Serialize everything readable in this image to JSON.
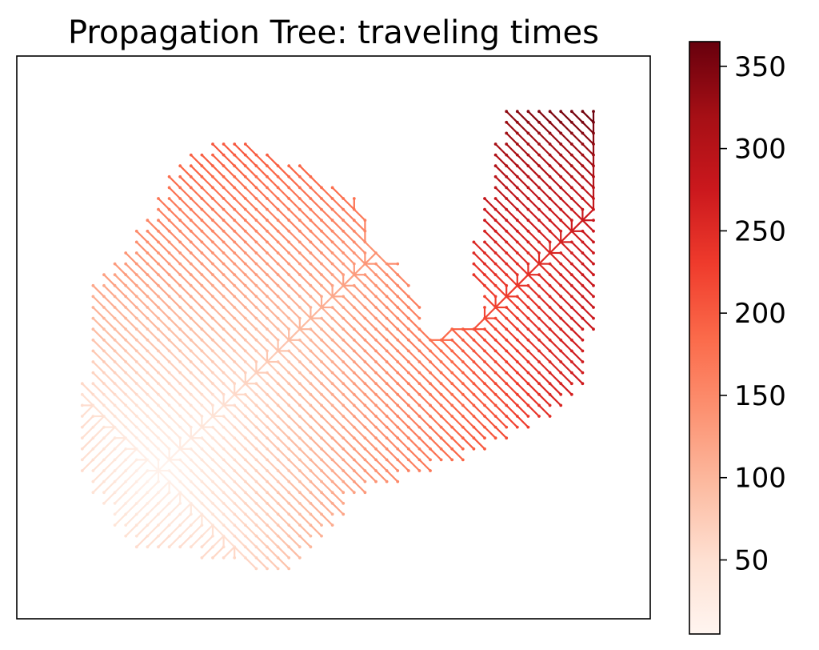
{
  "chart_data": {
    "type": "tree",
    "title": "Propagation Tree: traveling times",
    "colormap": "Reds",
    "colorbar": {
      "vmin": 5,
      "vmax": 365,
      "ticks": [
        50,
        100,
        150,
        200,
        250,
        300,
        350
      ],
      "tick_labels": [
        "50",
        "100",
        "150",
        "200",
        "250",
        "300",
        "350"
      ],
      "color_stops": [
        "#fff5f0",
        "#fee0d2",
        "#fcbba1",
        "#fc9272",
        "#fb6a4a",
        "#ef3b2c",
        "#cb181d",
        "#a50f15",
        "#67000d"
      ]
    },
    "source": [
      -7,
      -6
    ],
    "axes": {
      "xlim": [
        -12,
        21
      ],
      "ylim": [
        -14,
        17
      ],
      "ticks_visible": false,
      "grid": false
    }
  }
}
